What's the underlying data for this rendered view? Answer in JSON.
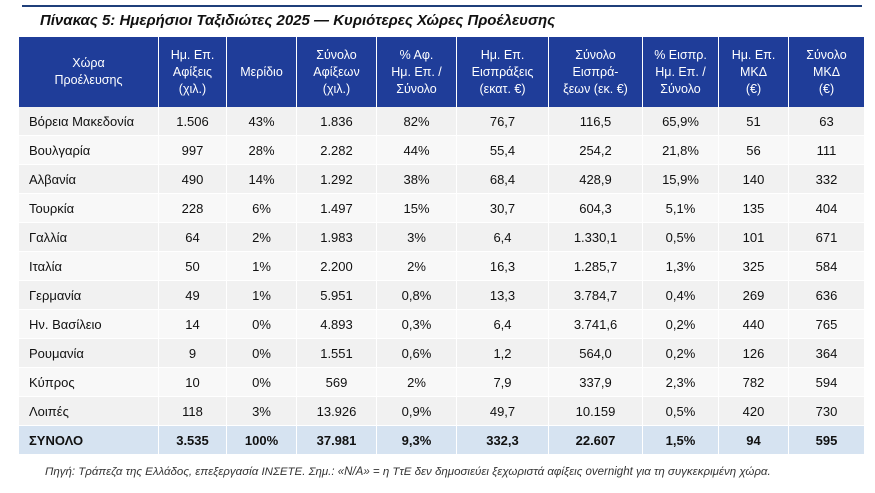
{
  "title": "Πίνακας 5: Ημερήσιοι Ταξιδιώτες 2025 — Κυριότερες Χώρες Προέλευσης",
  "headers": [
    "Χώρα\nΠροέλευσης",
    "Ημ. Επ.\nΑφίξεις\n(χιλ.)",
    "Μερίδιο",
    "Σύνολο\nΑφίξεων\n(χιλ.)",
    "% Αφ.\nΗμ. Επ. /\nΣύνολο",
    "Ημ. Επ.\nΕισπράξεις\n(εκατ. €)",
    "Σύνολο\nΕισπρά-\nξεων (εκ. €)",
    "% Εισπρ.\nΗμ. Επ. /\nΣύνολο",
    "Ημ. Επ.\nΜΚΔ\n(€)",
    "Σύνολο\nΜΚΔ\n(€)"
  ],
  "rows": [
    [
      "Βόρεια Μακεδονία",
      "1.506",
      "43%",
      "1.836",
      "82%",
      "76,7",
      "116,5",
      "65,9%",
      "51",
      "63"
    ],
    [
      "Βουλγαρία",
      "997",
      "28%",
      "2.282",
      "44%",
      "55,4",
      "254,2",
      "21,8%",
      "56",
      "111"
    ],
    [
      "Αλβανία",
      "490",
      "14%",
      "1.292",
      "38%",
      "68,4",
      "428,9",
      "15,9%",
      "140",
      "332"
    ],
    [
      "Τουρκία",
      "228",
      "6%",
      "1.497",
      "15%",
      "30,7",
      "604,3",
      "5,1%",
      "135",
      "404"
    ],
    [
      "Γαλλία",
      "64",
      "2%",
      "1.983",
      "3%",
      "6,4",
      "1.330,1",
      "0,5%",
      "101",
      "671"
    ],
    [
      "Ιταλία",
      "50",
      "1%",
      "2.200",
      "2%",
      "16,3",
      "1.285,7",
      "1,3%",
      "325",
      "584"
    ],
    [
      "Γερμανία",
      "49",
      "1%",
      "5.951",
      "0,8%",
      "13,3",
      "3.784,7",
      "0,4%",
      "269",
      "636"
    ],
    [
      "Ην. Βασίλειο",
      "14",
      "0%",
      "4.893",
      "0,3%",
      "6,4",
      "3.741,6",
      "0,2%",
      "440",
      "765"
    ],
    [
      "Ρουμανία",
      "9",
      "0%",
      "1.551",
      "0,6%",
      "1,2",
      "564,0",
      "0,2%",
      "126",
      "364"
    ],
    [
      "Κύπρος",
      "10",
      "0%",
      "569",
      "2%",
      "7,9",
      "337,9",
      "2,3%",
      "782",
      "594"
    ],
    [
      "Λοιπές",
      "118",
      "3%",
      "13.926",
      "0,9%",
      "49,7",
      "10.159",
      "0,5%",
      "420",
      "730"
    ]
  ],
  "total": [
    "ΣΥΝΟΛΟ",
    "3.535",
    "100%",
    "37.981",
    "9,3%",
    "332,3",
    "22.607",
    "1,5%",
    "94",
    "595"
  ],
  "footnote": "Πηγή: Τράπεζα της Ελλάδος, επεξεργασία ΙΝΣΕΤΕ. Σημ.: «N/A» = η ΤτΕ δεν δημοσιεύει ξεχωριστά αφίξεις overnight για τη συγκεκριμένη χώρα.",
  "colors": {
    "header_bg": "#1f3d99",
    "total_bg": "#d6e3f1",
    "rule": "#1f3f7a"
  }
}
